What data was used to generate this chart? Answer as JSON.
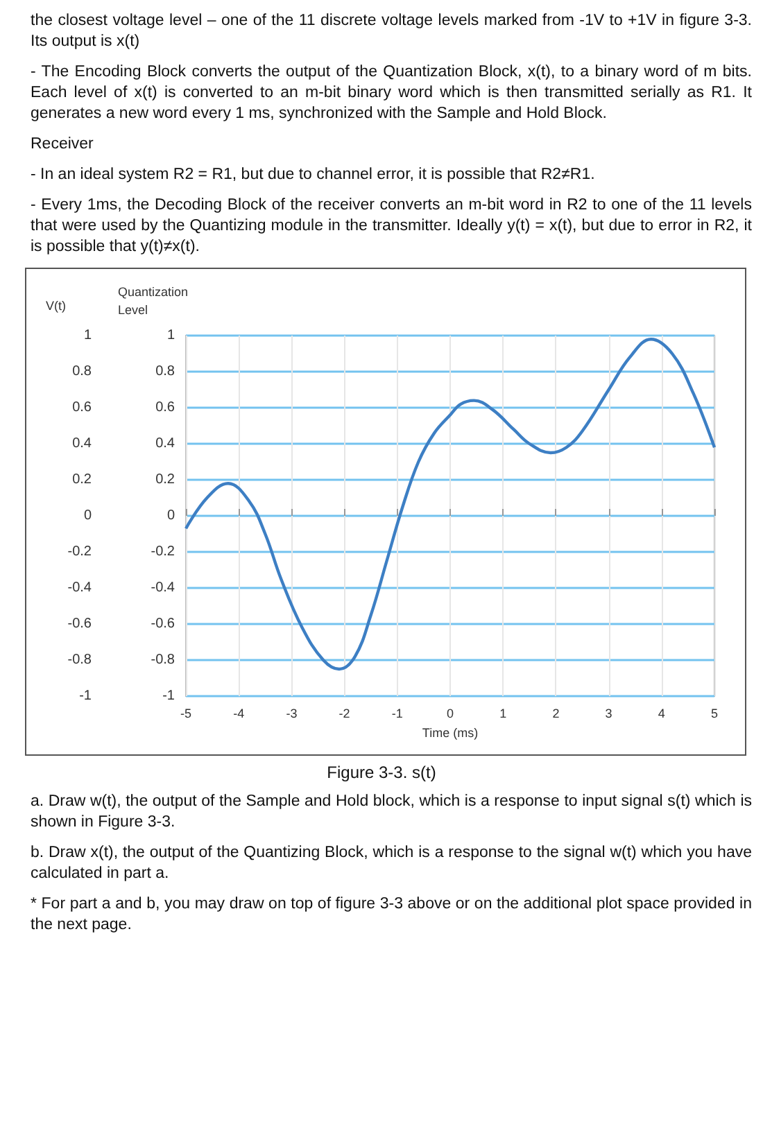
{
  "chart_data": {
    "type": "line",
    "title": "Figure 3-3. s(t)",
    "xlabel": "Time (ms)",
    "ylabel": "V(t)",
    "y2label": "Quantization Level",
    "x": [
      -5,
      -4.6,
      -4.2,
      -3.8,
      -3.5,
      -3.2,
      -2.8,
      -2.4,
      -2.1,
      -1.8,
      -1.5,
      -1.2,
      -0.9,
      -0.6,
      -0.3,
      0,
      0.2,
      0.45,
      0.8,
      1.2,
      1.5,
      1.9,
      2.2,
      2.5,
      3,
      3.4,
      3.8,
      4.2,
      4.6,
      5
    ],
    "series": [
      {
        "color": "#3d7fc4",
        "values": [
          -0.07,
          0.1,
          0.18,
          0.08,
          -0.1,
          -0.35,
          -0.62,
          -0.8,
          -0.85,
          -0.78,
          -0.55,
          -0.25,
          0.05,
          0.3,
          0.46,
          0.56,
          0.62,
          0.64,
          0.59,
          0.48,
          0.4,
          0.35,
          0.38,
          0.47,
          0.7,
          0.88,
          0.98,
          0.9,
          0.68,
          0.38
        ]
      }
    ],
    "xlim": [
      -5,
      5
    ],
    "xticks": [
      -5,
      -4,
      -3,
      -2,
      -1,
      0,
      1,
      2,
      3,
      4,
      5
    ],
    "ylim": [
      -1,
      1
    ],
    "yticks": [
      -1,
      -0.8,
      -0.6,
      -0.4,
      -0.2,
      0,
      0.2,
      0.4,
      0.6,
      0.8,
      1
    ],
    "y2lim": [
      -1,
      1
    ],
    "y2ticks": [
      -1,
      -0.8,
      -0.6,
      -0.4,
      -0.2,
      0,
      0.2,
      0.4,
      0.6,
      0.8,
      1
    ],
    "grid": true,
    "marker": "none",
    "line_style": "solid",
    "annotations": [
      "the closest voltage level – one of the 11 discrete voltage levels marked from -1V to +1V in figure 3-3. Its output is x(t)",
      "-  The Encoding Block converts the output of the Quantization Block, x(t), to a binary word of m bits. Each level of x(t) is converted to an m-bit binary word which is then transmitted serially as R1. It generates a new word every 1 ms, synchronized with the Sample and Hold Block.",
      "Receiver",
      "-  In an ideal system R2 = R1, but due to channel error, it is possible that R2≠R1.",
      "-  Every 1ms, the Decoding Block of the receiver converts an m-bit word in R2 to one of the 11 levels that were used by the Quantizing module in the transmitter. Ideally y(t) = x(t), but due to error in R2, it is possible that y(t)≠x(t).",
      "a.  Draw w(t), the output of the Sample and Hold block, which is a response to input signal s(t) which is shown in Figure 3-3.",
      "b.  Draw x(t), the output of the Quantizing Block, which is a response to the signal w(t) which you have calculated in part a.",
      "* For part a and b, you may draw on top of figure 3-3 above or on the additional plot space provided in the next page."
    ]
  }
}
